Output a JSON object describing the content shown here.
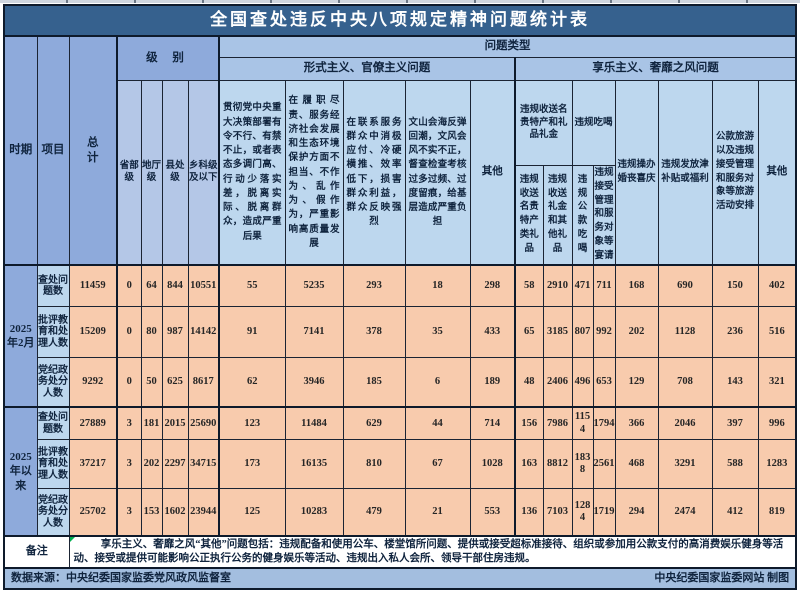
{
  "title": "全国查处违反中央八项规定精神问题统计表",
  "header": {
    "period": "时期",
    "item": "项目",
    "total": "总计",
    "level": "级 别",
    "problem_type": "问题类型",
    "levels": [
      "省部级",
      "地厅级",
      "县处级",
      "乡科级及以下"
    ],
    "formalism_group": "形式主义、官僚主义问题",
    "formalism_cols": [
      "贯彻党中央重大决策部署有令不行、有禁不止，或者表态多调门高、行动少落实差，脱离实际、脱离群众，造成严重后果",
      "在履职尽责、服务经济社会发展和生态环境保护方面不担当、不作为、乱作为、假作为，严重影响高质量发展",
      "在联系服务群众中消极应付、冷硬横推、效率低下，损害群众利益，群众反映强烈",
      "文山会海反弹回潮，文风会风不实不正，督查检查考核过多过频、过度留痕，给基层造成严重负担",
      "其他"
    ],
    "hedonism_group": "享乐主义、奢靡之风问题",
    "gifts_group": "违规收送名贵特产和礼品礼金",
    "eating_group": "违规吃喝",
    "hedonism_cols": [
      "违规收送名贵特产类礼品",
      "违规收送礼金和其他礼品",
      "违规公款吃喝",
      "违规接受管理和服务对象等宴请",
      "违规操办婚丧喜庆",
      "违规发放津补贴或福利",
      "公款旅游以及违规接受管理和服务对象等旅游活动安排",
      "其他"
    ]
  },
  "row_labels": [
    "查处问题数",
    "批评教育和处理人数",
    "党纪政务处分人数"
  ],
  "periods": [
    {
      "label": "2025年2月",
      "rows": [
        [
          11459,
          0,
          64,
          844,
          10551,
          55,
          5235,
          293,
          18,
          298,
          58,
          2910,
          471,
          711,
          168,
          690,
          150,
          402
        ],
        [
          15209,
          0,
          80,
          987,
          14142,
          91,
          7141,
          378,
          35,
          433,
          65,
          3185,
          807,
          992,
          202,
          1128,
          236,
          516
        ],
        [
          9292,
          0,
          50,
          625,
          8617,
          62,
          3946,
          185,
          6,
          189,
          48,
          2406,
          496,
          653,
          129,
          708,
          143,
          321
        ]
      ]
    },
    {
      "label": "2025年以来",
      "rows": [
        [
          27889,
          3,
          181,
          2015,
          25690,
          123,
          11484,
          629,
          44,
          714,
          156,
          7986,
          1154,
          1794,
          366,
          2046,
          397,
          996
        ],
        [
          37217,
          3,
          202,
          2297,
          34715,
          173,
          16135,
          810,
          67,
          1028,
          163,
          8812,
          1838,
          2561,
          468,
          3291,
          588,
          1283
        ],
        [
          25702,
          3,
          153,
          1602,
          23944,
          125,
          10283,
          479,
          21,
          553,
          136,
          7103,
          1284,
          1719,
          294,
          2474,
          412,
          819
        ]
      ]
    }
  ],
  "remark": {
    "label": "备注",
    "text": "享乐主义、奢靡之风“其他”问题包括：违规配备和使用公车、楼堂馆所问题、提供或接受超标准接待、组织或参加用公款支付的高消费娱乐健身等活动、接受或提供可能影响公正执行公务的健身娱乐等活动、违规出入私人会所、领导干部住房违规。"
  },
  "footer": {
    "left": "数据来源：中央纪委国家监委党风政风监督室",
    "right": "中央纪委国家监委网站 制图"
  },
  "colors": {
    "title_bg": "#36618E",
    "header_blue": "#8EAADB",
    "header_mid": "#A9C4E6",
    "header_light": "#BDD7EE",
    "level_bg": "#B4C7E7",
    "data_bg": "#F8CBAD",
    "footer_bg": "#A3BEDF",
    "border": "#0e1a2b"
  }
}
